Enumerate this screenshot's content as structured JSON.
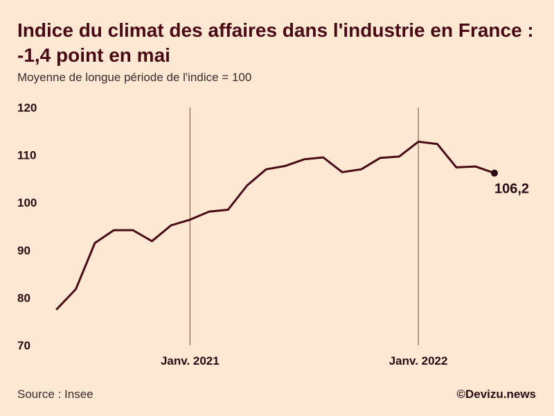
{
  "header": {
    "title": "Indice du climat des affaires dans l'industrie en France : -1,4 point en mai",
    "subtitle": "Moyenne de longue période de l'indice = 100"
  },
  "footer": {
    "source": "Source : Insee",
    "credit": "©Devizu.news"
  },
  "colors": {
    "background": "#fde8d4",
    "line": "#4a0a14",
    "text": "#4a0a14"
  },
  "chart_data": {
    "type": "line",
    "title": "Indice du climat des affaires dans l'industrie en France : -1,4 point en mai",
    "subtitle": "Moyenne de longue période de l'indice = 100",
    "x": [
      "2020-06",
      "2020-07",
      "2020-08",
      "2020-09",
      "2020-10",
      "2020-11",
      "2020-12",
      "2021-01",
      "2021-02",
      "2021-03",
      "2021-04",
      "2021-05",
      "2021-06",
      "2021-07",
      "2021-08",
      "2021-09",
      "2021-10",
      "2021-11",
      "2021-12",
      "2022-01",
      "2022-02",
      "2022-03",
      "2022-04",
      "2022-05"
    ],
    "series": [
      {
        "values": [
          77.6,
          81.8,
          91.5,
          94.2,
          94.2,
          91.9,
          95.2,
          96.4,
          98.1,
          98.5,
          103.6,
          107.0,
          107.7,
          109.1,
          109.5,
          106.4,
          107.0,
          109.4,
          109.7,
          112.8,
          112.3,
          107.4,
          107.6,
          106.2
        ]
      }
    ],
    "yticks": [
      "120",
      "110",
      "100",
      "90",
      "80",
      "70"
    ],
    "ylim": [
      70,
      120
    ],
    "xticks": [
      {
        "x": "2021-01",
        "label": "Janv. 2021"
      },
      {
        "x": "2022-01",
        "label": "Janv. 2022"
      }
    ],
    "end_label": "106,2",
    "grid": false,
    "legend": "none"
  }
}
